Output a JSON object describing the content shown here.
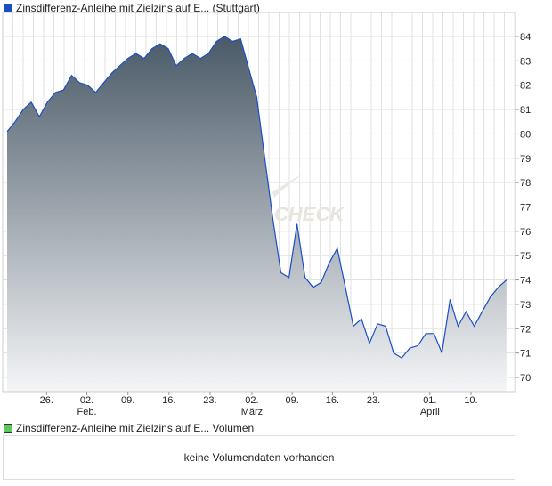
{
  "legend_main": "Zinsdifferenz-Anleihe mit Zielzins auf E... (Stuttgart)",
  "legend_volume": "Zinsdifferenz-Anleihe mit Zielzins auf E... Volumen",
  "volume_message": "keine Volumendaten vorhanden",
  "watermark": "CHECK",
  "colors": {
    "line": "#1a4fc4",
    "fill_top": "#4a5a68",
    "fill_bottom": "#f4f5f7",
    "main_legend": "#1a4fc4",
    "volume_legend": "#5cc85c",
    "grid": "#dddddd"
  },
  "chart_data": {
    "type": "area",
    "title": "Zinsdifferenz-Anleihe mit Zielzins auf E... (Stuttgart)",
    "ylim": [
      69.4,
      85.0
    ],
    "yticks": [
      70,
      71,
      72,
      73,
      74,
      75,
      76,
      77,
      78,
      79,
      80,
      81,
      82,
      83,
      84
    ],
    "xlim": [
      0,
      62.8
    ],
    "xticks": [
      {
        "i": 4.9,
        "label": "26.",
        "month": ""
      },
      {
        "i": 9.9,
        "label": "02.",
        "month": "Feb."
      },
      {
        "i": 15.0,
        "label": "09.",
        "month": ""
      },
      {
        "i": 20.1,
        "label": "16.",
        "month": ""
      },
      {
        "i": 25.2,
        "label": "23.",
        "month": ""
      },
      {
        "i": 30.4,
        "label": "02.",
        "month": "März"
      },
      {
        "i": 35.4,
        "label": "09.",
        "month": ""
      },
      {
        "i": 40.4,
        "label": "16.",
        "month": ""
      },
      {
        "i": 45.5,
        "label": "23.",
        "month": ""
      },
      {
        "i": 52.5,
        "label": "01.",
        "month": "April"
      },
      {
        "i": 57.6,
        "label": "10.",
        "month": ""
      }
    ],
    "values": [
      80.1,
      80.5,
      81.0,
      81.3,
      80.7,
      81.3,
      81.7,
      81.8,
      82.4,
      82.1,
      82.0,
      81.7,
      82.1,
      82.5,
      82.8,
      83.1,
      83.3,
      83.1,
      83.5,
      83.7,
      83.5,
      82.8,
      83.1,
      83.3,
      83.1,
      83.3,
      83.8,
      84.0,
      83.8,
      83.9,
      82.7,
      81.5,
      79.0,
      76.5,
      74.3,
      74.1,
      76.3,
      74.1,
      73.7,
      73.9,
      74.7,
      75.3,
      73.7,
      72.1,
      72.4,
      71.4,
      72.2,
      72.1,
      71.0,
      70.8,
      71.2,
      71.3,
      71.8,
      71.8,
      71.0,
      73.2,
      72.1,
      72.7,
      72.1,
      72.7,
      73.3,
      73.7,
      74.0
    ]
  }
}
